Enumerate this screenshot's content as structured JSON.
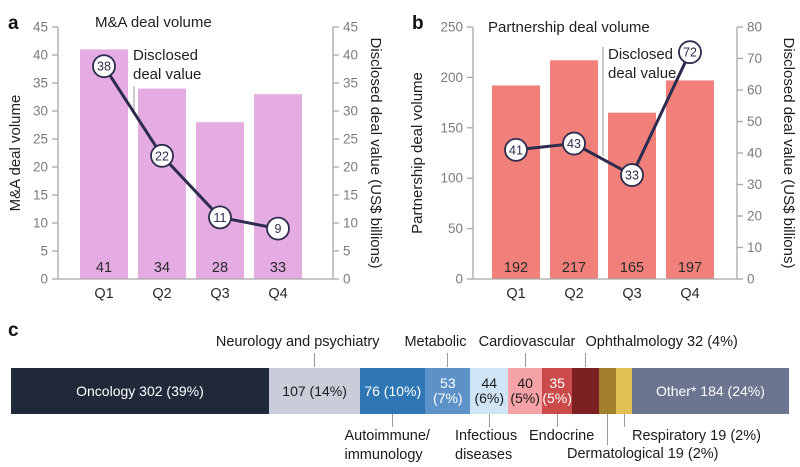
{
  "panels": {
    "a": {
      "tag": "a"
    },
    "b": {
      "tag": "b"
    },
    "c": {
      "tag": "c"
    }
  },
  "chart_data": [
    {
      "panel": "a",
      "type": "bar",
      "title": "M&A deal volume",
      "annotation": {
        "lines": [
          "Disclosed",
          "deal value"
        ]
      },
      "categories": [
        "Q1",
        "Q2",
        "Q3",
        "Q4"
      ],
      "series": [
        {
          "name": "M&A deal volume",
          "type": "bar",
          "axis": "left",
          "values": [
            41,
            34,
            28,
            33
          ],
          "color": "#e5abe3"
        },
        {
          "name": "Disclosed deal value",
          "type": "line",
          "axis": "right",
          "values": [
            38,
            22,
            11,
            9
          ],
          "color": "#2d2c4e"
        }
      ],
      "axes": {
        "left": {
          "label": "M&A deal volume",
          "min": 0,
          "max": 45,
          "step": 5
        },
        "right": {
          "label": "Disclosed deal value (US$ billions)",
          "min": 0,
          "max": 45,
          "step": 5
        }
      },
      "grid": false,
      "colors": {
        "axis": "#a8a8a8",
        "tick_label": "#7c7c7c",
        "text": "#1f1f1f",
        "marker_fill": "#ffffff"
      }
    },
    {
      "panel": "b",
      "type": "bar",
      "title": "Partnership deal volume",
      "annotation": {
        "lines": [
          "Disclosed",
          "deal value"
        ]
      },
      "categories": [
        "Q1",
        "Q2",
        "Q3",
        "Q4"
      ],
      "series": [
        {
          "name": "Partnership deal volume",
          "type": "bar",
          "axis": "left",
          "values": [
            192,
            217,
            165,
            197
          ],
          "color": "#f1807b"
        },
        {
          "name": "Disclosed deal value",
          "type": "line",
          "axis": "right",
          "values": [
            41,
            43,
            33,
            72
          ],
          "color": "#2d2c4e"
        }
      ],
      "axes": {
        "left": {
          "label": "Partnership deal volume",
          "min": 0,
          "max": 250,
          "step": 50
        },
        "right": {
          "label": "Disclosed deal value (US$ billions)",
          "min": 0,
          "max": 80,
          "step": 10
        }
      },
      "grid": false,
      "colors": {
        "axis": "#a8a8a8",
        "tick_label": "#7c7c7c",
        "text": "#1f1f1f",
        "marker_fill": "#ffffff"
      }
    },
    {
      "panel": "c",
      "type": "stacked_bar",
      "segments": [
        {
          "label": "Oncology",
          "count": 302,
          "pct": 39,
          "color": "#20293a",
          "text_color": "#ffffff",
          "inbar_lines": [
            "Oncology 302 (39%)"
          ]
        },
        {
          "label": "Neurology and psychiatry",
          "count": 107,
          "pct": 14,
          "color": "#c9cdd9",
          "text_color": "#1a1a1a",
          "inbar_lines": [
            "107 (14%)"
          ]
        },
        {
          "label": "Autoimmune/immunology",
          "count": 76,
          "pct": 10,
          "color": "#2e77b4",
          "text_color": "#ffffff",
          "inbar_lines": [
            "76 (10%)"
          ]
        },
        {
          "label": "Metabolic",
          "count": 53,
          "pct": 7,
          "color": "#5d92c8",
          "text_color": "#ffffff",
          "inbar_lines": [
            "53",
            "(7%)"
          ]
        },
        {
          "label": "Infectious diseases",
          "count": 44,
          "pct": 6,
          "color": "#cfe4f5",
          "text_color": "#1a1a1a",
          "inbar_lines": [
            "44",
            "(6%)"
          ]
        },
        {
          "label": "Cardiovascular",
          "count": 40,
          "pct": 5,
          "color": "#f5a3a7",
          "text_color": "#1a1a1a",
          "inbar_lines": [
            "40",
            "(5%)"
          ]
        },
        {
          "label": "Endocrine",
          "count": 35,
          "pct": 5,
          "color": "#cb4b4b",
          "text_color": "#ffffff",
          "inbar_lines": [
            "35",
            "(5%)"
          ]
        },
        {
          "label": "Ophthalmology",
          "count": 32,
          "pct": 4,
          "color": "#7d2023",
          "text_color": "#ffffff",
          "inbar_lines": []
        },
        {
          "label": "Dermatological",
          "count": 19,
          "pct": 2,
          "color": "#a3802b",
          "text_color": "#ffffff",
          "inbar_lines": []
        },
        {
          "label": "Respiratory",
          "count": 19,
          "pct": 2,
          "color": "#e2bf55",
          "text_color": "#ffffff",
          "inbar_lines": []
        },
        {
          "label": "Other*",
          "count": 184,
          "pct": 24,
          "color": "#6b7590",
          "text_color": "#ffffff",
          "inbar_lines": [
            "Other* 184 (24%)"
          ]
        }
      ],
      "callouts": {
        "top": [
          {
            "text": "Neurology and psychiatry",
            "segment": 1
          },
          {
            "text": "Metabolic",
            "segment": 3
          },
          {
            "text": "Cardiovascular",
            "segment": 5
          },
          {
            "text": "Ophthalmology 32 (4%)",
            "segment": 7
          }
        ],
        "bottom": [
          {
            "text": "Autoimmune/\nimmunology",
            "segment": 2
          },
          {
            "text": "Infectious\ndiseases",
            "segment": 4
          },
          {
            "text": "Endocrine",
            "segment": 6
          },
          {
            "text": "Respiratory 19 (2%)",
            "segment": 9
          },
          {
            "text": "Dermatological 19 (2%)",
            "segment": 8
          }
        ]
      }
    }
  ]
}
